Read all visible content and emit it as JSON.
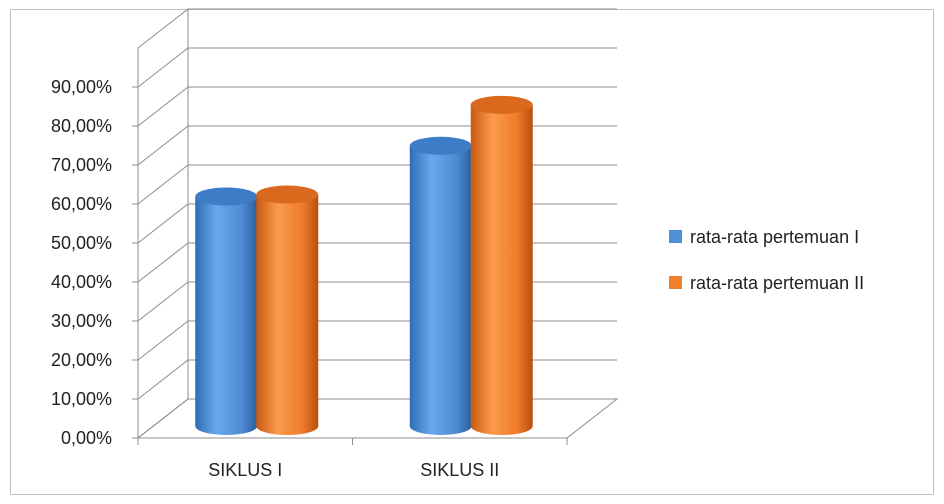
{
  "chart_data": {
    "type": "bar",
    "style": "3d-cylinder",
    "categories": [
      "SIKLUS I",
      "SIKLUS II"
    ],
    "series": [
      {
        "name": "rata-rata pertemuan I",
        "values": [
          65.0,
          78.0
        ],
        "color": "#4f8fd8"
      },
      {
        "name": "rata-rata pertemuan II",
        "values": [
          65.5,
          88.5
        ],
        "color": "#f0802c"
      }
    ],
    "yticks": [
      "0,00%",
      "10,00%",
      "20,00%",
      "30,00%",
      "40,00%",
      "50,00%",
      "60,00%",
      "70,00%",
      "80,00%",
      "90,00%"
    ],
    "ylim": [
      0,
      90
    ],
    "grid": true,
    "legend": "right"
  }
}
